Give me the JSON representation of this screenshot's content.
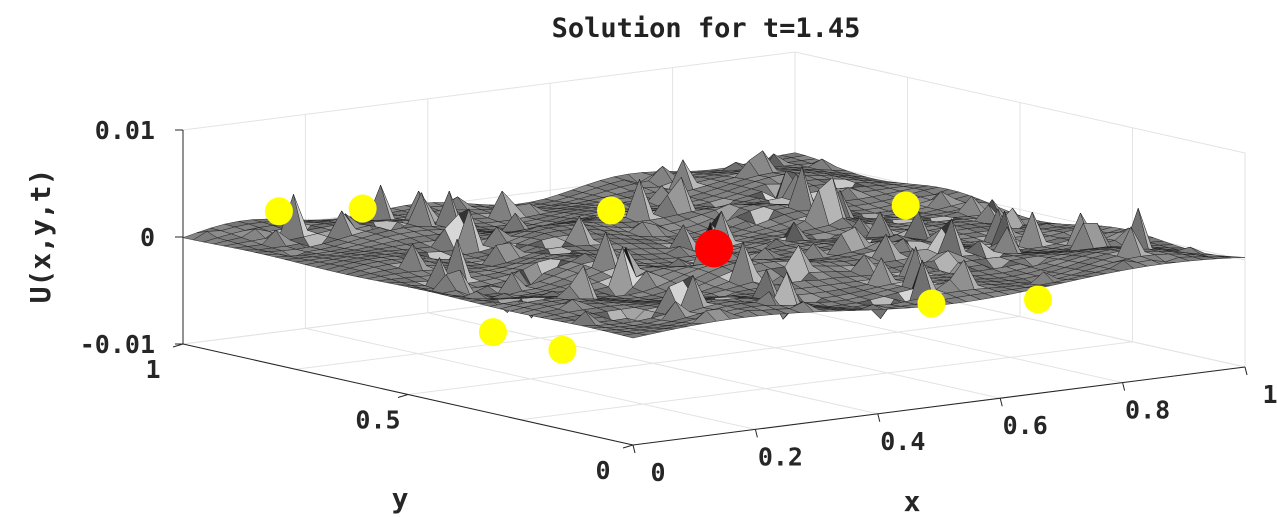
{
  "chart_data": {
    "type": "surface",
    "title": "Solution for t=1.45",
    "xlabel": "x",
    "ylabel": "y",
    "zlabel": "U(x,y,t)",
    "xlim": [
      0,
      1
    ],
    "ylim": [
      0,
      1
    ],
    "zlim": [
      -0.01,
      0.01
    ],
    "x_ticks": [
      "0",
      "0.2",
      "0.4",
      "0.6",
      "0.8",
      "1"
    ],
    "y_ticks": [
      "0",
      "0.5",
      "1"
    ],
    "z_ticks": [
      "0.01",
      "0",
      "-0.01"
    ],
    "grid": true,
    "surface_color": "#7a7a7a",
    "markers": {
      "red": {
        "color": "#ff0000",
        "points": [
          {
            "x": 0.5,
            "y": 0.5,
            "z": 0.0
          }
        ]
      },
      "yellow": {
        "color": "#ffff00",
        "points": [
          {
            "x": 0.12,
            "y": 0.95,
            "z": 0.002
          },
          {
            "x": 0.22,
            "y": 0.9,
            "z": 0.002
          },
          {
            "x": 0.42,
            "y": 0.62,
            "z": 0.003
          },
          {
            "x": 0.85,
            "y": 0.55,
            "z": 0.001
          },
          {
            "x": 0.08,
            "y": 0.42,
            "z": -0.004
          },
          {
            "x": 0.12,
            "y": 0.32,
            "z": -0.005
          },
          {
            "x": 0.62,
            "y": 0.18,
            "z": -0.003
          },
          {
            "x": 0.75,
            "y": 0.12,
            "z": -0.003
          }
        ]
      }
    }
  }
}
